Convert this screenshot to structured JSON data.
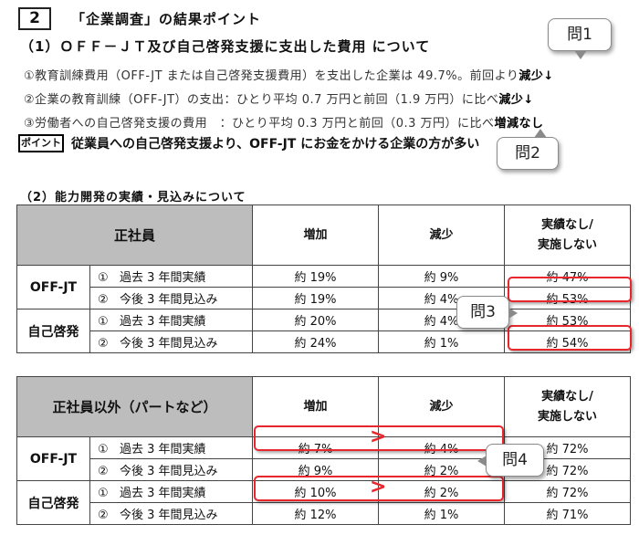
{
  "section": {
    "number": "2",
    "title": "「企業調査」の結果ポイント",
    "sub1": "（1）ＯＦＦ－ＪＴ及び自己啓発支援に支出した費用 について",
    "lines": [
      {
        "text": "①教育訓練費用（OFF-JT または自己啓発支援費用）を支出した企業は 49.7%。前回より",
        "end": "減少↓"
      },
      {
        "text": "②企業の教育訓練（OFF-JT）の支出：ひとり平均 0.7 万円と前回（1.9 万円）に比べ",
        "end": "減少↓"
      },
      {
        "text": "③労働者への自己啓発支援の費用　：ひとり平均 0.3 万円と前回（0.3 万円）に比べ",
        "end": "増減なし"
      }
    ],
    "point_label": "ポイント",
    "point_text": "従業員への自己啓発支援より、OFF-JT にお金をかける企業の方が多い",
    "sub2": "（2）能力開発の実績・見込みについて"
  },
  "bubbles": {
    "q1": "問1",
    "q2": "問2",
    "q3": "問3",
    "q4": "問4"
  },
  "table1": {
    "header": {
      "group": "正社員",
      "col1": "増加",
      "col2": "減少",
      "col3_a": "実績なし/",
      "col3_b": "実施しない"
    },
    "groups": [
      {
        "label": "OFF-JT",
        "rows": [
          {
            "num": "①",
            "period": "過去 3 年間実績",
            "v1": "約 19%",
            "v2": "約 9%",
            "v3": "約 47%"
          },
          {
            "num": "②",
            "period": "今後 3 年間見込み",
            "v1": "約 19%",
            "v2": "約 4%",
            "v3": "約 53%"
          }
        ]
      },
      {
        "label": "自己啓発",
        "rows": [
          {
            "num": "①",
            "period": "過去 3 年間実績",
            "v1": "約 20%",
            "v2": "約 4%",
            "v3": "約 53%"
          },
          {
            "num": "②",
            "period": "今後 3 年間見込み",
            "v1": "約 24%",
            "v2": "約 1%",
            "v3": "約 54%"
          }
        ]
      }
    ]
  },
  "table2": {
    "header": {
      "group": "正社員以外（パートなど）",
      "col1": "増加",
      "col2": "減少",
      "col3_a": "実績なし/",
      "col3_b": "実施しない"
    },
    "groups": [
      {
        "label": "OFF-JT",
        "rows": [
          {
            "num": "①",
            "period": "過去 3 年間実績",
            "v1": "約 7%",
            "v2": "約 4%",
            "v3": "約 72%"
          },
          {
            "num": "②",
            "period": "今後 3 年間見込み",
            "v1": "約 9%",
            "v2": "約 2%",
            "v3": "約 72%"
          }
        ]
      },
      {
        "label": "自己啓発",
        "rows": [
          {
            "num": "①",
            "period": "過去 3 年間実績",
            "v1": "約 10%",
            "v2": "約 2%",
            "v3": "約 72%"
          },
          {
            "num": "②",
            "period": "今後 3 年間見込み",
            "v1": "約 12%",
            "v2": "約 1%",
            "v3": "約 71%"
          }
        ]
      }
    ]
  },
  "colors": {
    "highlight": "#e8262c",
    "header_gray": "#bdbdbd"
  }
}
